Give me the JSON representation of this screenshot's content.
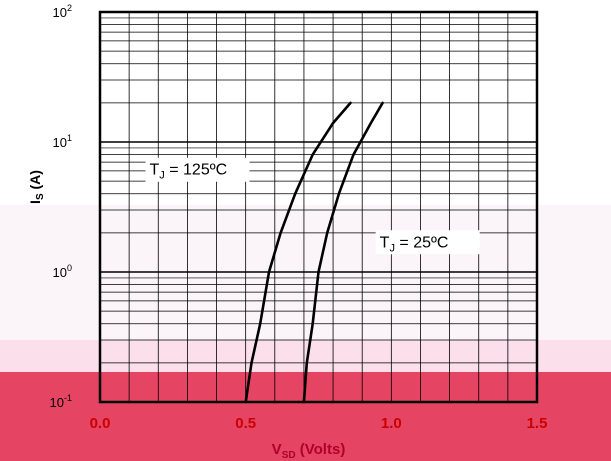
{
  "chart_data": {
    "type": "line",
    "title": "",
    "xlabel": "V",
    "xlabel_sub": "SD",
    "xlabel_unit": " (Volts)",
    "ylabel": "I",
    "ylabel_sub": "S",
    "ylabel_unit": " (A)",
    "x_scale": "linear",
    "y_scale": "log",
    "xlim": [
      0,
      1.5
    ],
    "ylim": [
      0.1,
      100
    ],
    "x_ticks": [
      {
        "value": 0.0,
        "label": "0.0"
      },
      {
        "value": 0.5,
        "label": "0.5"
      },
      {
        "value": 1.0,
        "label": "1.0"
      },
      {
        "value": 1.5,
        "label": "1.5"
      }
    ],
    "y_ticks": [
      {
        "value": 0.1,
        "base": "10",
        "exp": "-1"
      },
      {
        "value": 1,
        "base": "10",
        "exp": "0"
      },
      {
        "value": 10,
        "base": "10",
        "exp": "1"
      },
      {
        "value": 100,
        "base": "10",
        "exp": "2"
      }
    ],
    "grid": true,
    "series": [
      {
        "name": "T J = 125ºC",
        "label_main": "T",
        "label_sub": "J",
        "label_rest": " = 125ºC",
        "x": [
          0.5,
          0.52,
          0.55,
          0.58,
          0.62,
          0.67,
          0.73,
          0.8,
          0.86
        ],
        "y": [
          0.1,
          0.2,
          0.4,
          1.0,
          2.0,
          4.0,
          8.0,
          14.0,
          20.0
        ]
      },
      {
        "name": "T J = 25ºC",
        "label_main": "T",
        "label_sub": "J",
        "label_rest": " = 25ºC",
        "x": [
          0.7,
          0.71,
          0.73,
          0.75,
          0.78,
          0.82,
          0.87,
          0.93,
          0.97
        ],
        "y": [
          0.1,
          0.2,
          0.4,
          1.0,
          2.0,
          4.0,
          8.0,
          14.0,
          20.0
        ]
      }
    ]
  },
  "colors": {
    "frame": "#000000",
    "grid": "#000000",
    "curve": "#000000",
    "tick_x": "#cc0000",
    "tick_y": "#000000",
    "axis_title_x": "#b0002a",
    "band_pink": "#f7c6dc",
    "band_red": "#e0284a"
  }
}
